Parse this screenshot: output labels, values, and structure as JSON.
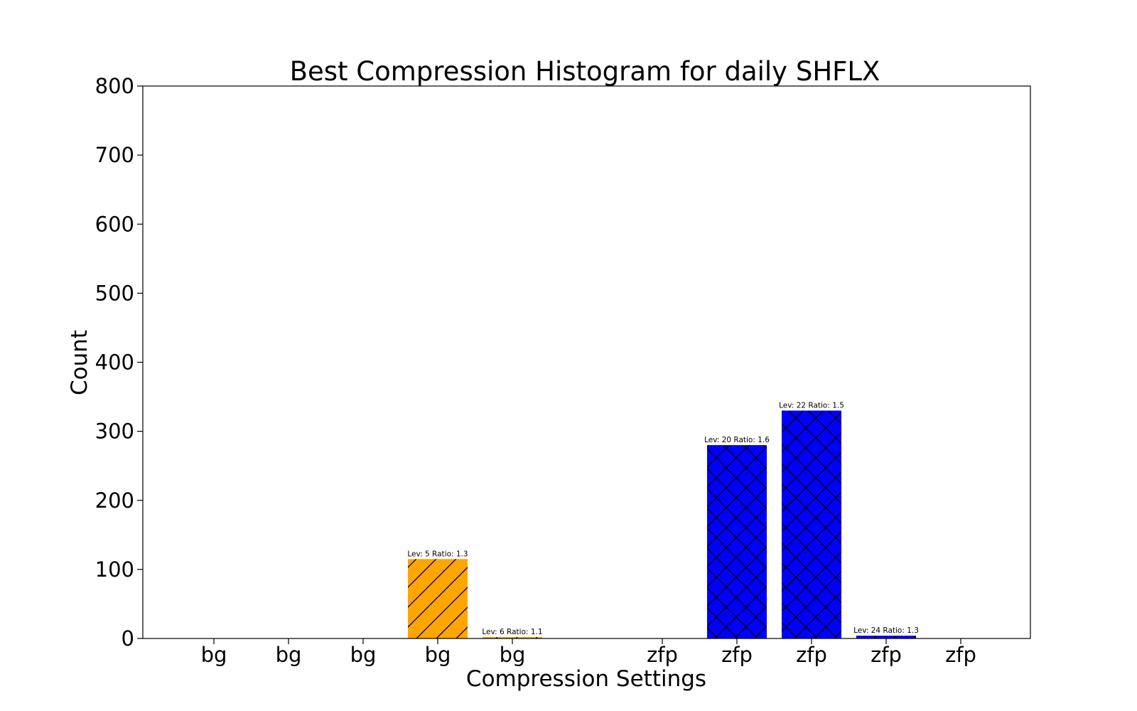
{
  "chart_data": {
    "type": "bar",
    "title": "Best Compression Histogram for daily SHFLX",
    "xlabel": "Compression Settings",
    "ylabel": "Count",
    "ylim": [
      0,
      800
    ],
    "yticks": [
      0,
      100,
      200,
      300,
      400,
      500,
      600,
      700,
      800
    ],
    "grid": false,
    "categories": [
      "bg",
      "bg",
      "bg",
      "bg",
      "bg",
      "zfp",
      "zfp",
      "zfp",
      "zfp",
      "zfp"
    ],
    "values": [
      0,
      0,
      0,
      115,
      2,
      0,
      280,
      330,
      4,
      0
    ],
    "bar_labels": [
      "",
      "",
      "",
      "Lev: 5 Ratio: 1.3",
      "Lev: 6 Ratio: 1.1",
      "",
      "Lev: 20 Ratio: 1.6",
      "Lev: 22 Ratio: 1.5",
      "Lev: 24 Ratio: 1.3",
      ""
    ],
    "groups": [
      {
        "compressor": "bg",
        "color": "#FFA500",
        "hatch": "diagonal"
      },
      {
        "compressor": "zfp",
        "color": "#0000FF",
        "hatch": "crosshatch"
      }
    ]
  }
}
